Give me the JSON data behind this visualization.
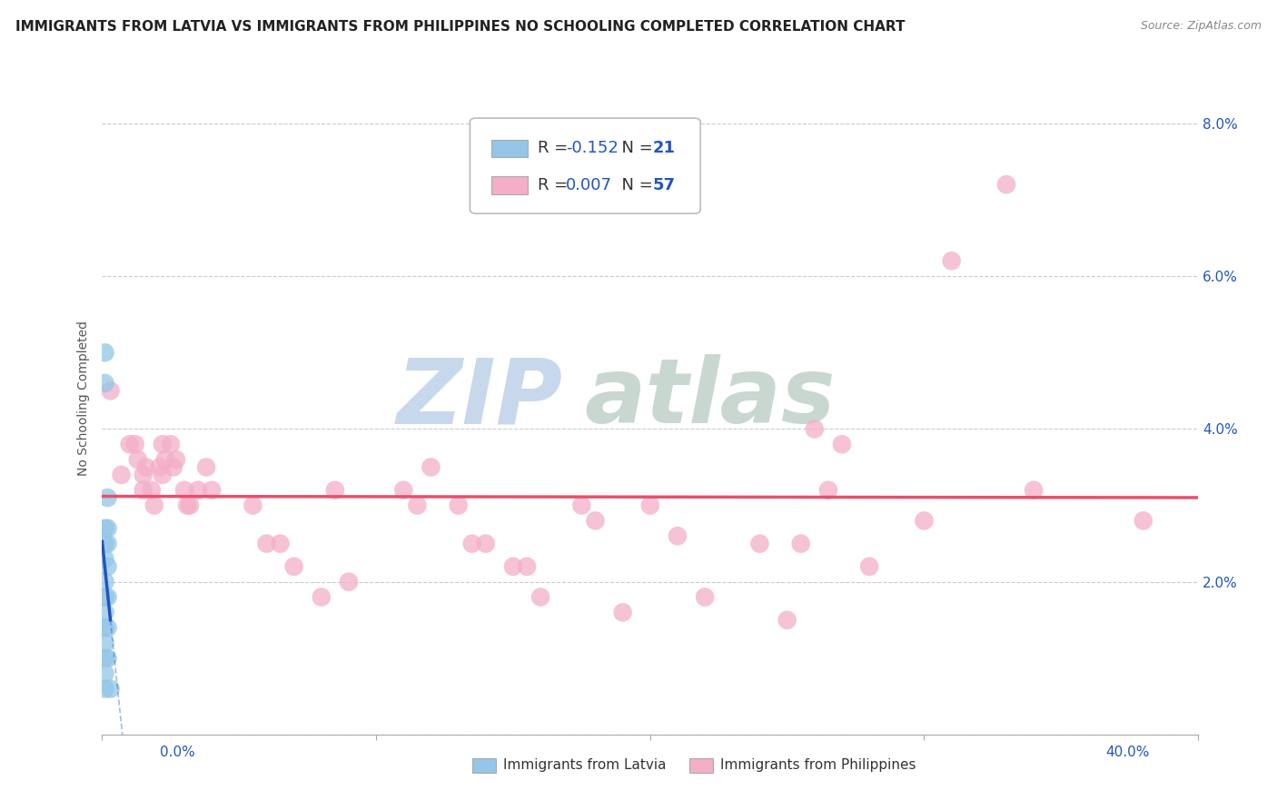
{
  "title": "IMMIGRANTS FROM LATVIA VS IMMIGRANTS FROM PHILIPPINES NO SCHOOLING COMPLETED CORRELATION CHART",
  "source": "Source: ZipAtlas.com",
  "ylabel": "No Schooling Completed",
  "xmin": 0.0,
  "xmax": 0.4,
  "ymin": 0.0,
  "ymax": 0.088,
  "yticks": [
    0.0,
    0.02,
    0.04,
    0.06,
    0.08
  ],
  "ytick_labels": [
    "",
    "2.0%",
    "4.0%",
    "6.0%",
    "8.0%"
  ],
  "latvia_points": [
    [
      0.001,
      0.05
    ],
    [
      0.001,
      0.046
    ],
    [
      0.001,
      0.027
    ],
    [
      0.001,
      0.025
    ],
    [
      0.001,
      0.023
    ],
    [
      0.001,
      0.02
    ],
    [
      0.001,
      0.018
    ],
    [
      0.001,
      0.016
    ],
    [
      0.001,
      0.014
    ],
    [
      0.001,
      0.012
    ],
    [
      0.001,
      0.01
    ],
    [
      0.001,
      0.008
    ],
    [
      0.001,
      0.006
    ],
    [
      0.002,
      0.031
    ],
    [
      0.002,
      0.027
    ],
    [
      0.002,
      0.025
    ],
    [
      0.002,
      0.022
    ],
    [
      0.002,
      0.018
    ],
    [
      0.002,
      0.014
    ],
    [
      0.002,
      0.01
    ],
    [
      0.003,
      0.006
    ]
  ],
  "philippines_points": [
    [
      0.003,
      0.045
    ],
    [
      0.007,
      0.034
    ],
    [
      0.01,
      0.038
    ],
    [
      0.012,
      0.038
    ],
    [
      0.013,
      0.036
    ],
    [
      0.015,
      0.034
    ],
    [
      0.015,
      0.032
    ],
    [
      0.016,
      0.035
    ],
    [
      0.018,
      0.032
    ],
    [
      0.019,
      0.03
    ],
    [
      0.021,
      0.035
    ],
    [
      0.022,
      0.038
    ],
    [
      0.022,
      0.034
    ],
    [
      0.023,
      0.036
    ],
    [
      0.025,
      0.038
    ],
    [
      0.026,
      0.035
    ],
    [
      0.027,
      0.036
    ],
    [
      0.03,
      0.032
    ],
    [
      0.031,
      0.03
    ],
    [
      0.032,
      0.03
    ],
    [
      0.035,
      0.032
    ],
    [
      0.038,
      0.035
    ],
    [
      0.04,
      0.032
    ],
    [
      0.055,
      0.03
    ],
    [
      0.06,
      0.025
    ],
    [
      0.065,
      0.025
    ],
    [
      0.07,
      0.022
    ],
    [
      0.08,
      0.018
    ],
    [
      0.085,
      0.032
    ],
    [
      0.09,
      0.02
    ],
    [
      0.11,
      0.032
    ],
    [
      0.115,
      0.03
    ],
    [
      0.12,
      0.035
    ],
    [
      0.13,
      0.03
    ],
    [
      0.135,
      0.025
    ],
    [
      0.14,
      0.025
    ],
    [
      0.15,
      0.022
    ],
    [
      0.155,
      0.022
    ],
    [
      0.16,
      0.018
    ],
    [
      0.175,
      0.03
    ],
    [
      0.18,
      0.028
    ],
    [
      0.19,
      0.016
    ],
    [
      0.2,
      0.03
    ],
    [
      0.21,
      0.026
    ],
    [
      0.22,
      0.018
    ],
    [
      0.24,
      0.025
    ],
    [
      0.25,
      0.015
    ],
    [
      0.255,
      0.025
    ],
    [
      0.26,
      0.04
    ],
    [
      0.265,
      0.032
    ],
    [
      0.27,
      0.038
    ],
    [
      0.28,
      0.022
    ],
    [
      0.3,
      0.028
    ],
    [
      0.31,
      0.062
    ],
    [
      0.33,
      0.072
    ],
    [
      0.34,
      0.032
    ],
    [
      0.38,
      0.028
    ]
  ],
  "latvia_color": "#93c6e8",
  "philippines_color": "#f4aec8",
  "latvia_line_color": "#2255bb",
  "philippines_line_color": "#e8506a",
  "background_color": "#ffffff",
  "watermark_zip": "ZIP",
  "watermark_atlas": "atlas",
  "watermark_color": "#c8d8ec",
  "watermark_atlas_color": "#c8d8d0",
  "grid_color": "#cccccc",
  "title_fontsize": 11,
  "source_fontsize": 9,
  "axis_label_fontsize": 10,
  "legend_fontsize": 13,
  "r_value_color": "#2255bb",
  "n_value_color": "#2255bb",
  "label_color": "#333333",
  "latvia_r": "-0.152",
  "latvia_n": "21",
  "philippines_r": "0.007",
  "philippines_n": "57"
}
